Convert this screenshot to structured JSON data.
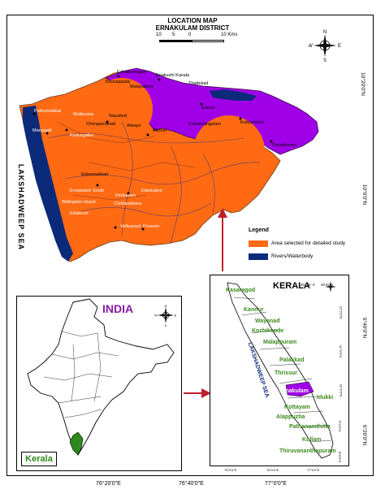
{
  "header": {
    "title": "LOCATION MAP",
    "district": "ERNAKULAM DISTRICT",
    "scale_ticks": [
      "10",
      "5",
      "0",
      "10 Kms"
    ]
  },
  "compass": {
    "n": "N",
    "s": "S",
    "e": "E",
    "w": "W"
  },
  "axes": {
    "lat_main": [
      "10°20'0\"N",
      "10°0'0\"N",
      "9°40'0\"N",
      "9°20'0\"N"
    ],
    "lon_main": [
      "76°20'0\"E",
      "76°40'0\"E",
      "77°0'0\"E"
    ],
    "lat_kerala": [
      "12°0'0\"N",
      "11°0'0\"N",
      "10°0'0\"N",
      "9°0'0\"N",
      "8°0'0\"N"
    ],
    "lon_kerala": [
      "75°0'0\"E",
      "76°0'0\"E",
      "77°0'0\"E"
    ]
  },
  "sea_label": "LAKSHADWEEP SEA",
  "places": [
    "Ezhattumugam",
    "Koovappady",
    "Malayattoor",
    "Enakuzhi Kavala",
    "Thattekad",
    "Eranur",
    "Kuttyanchal",
    "Thalakkunnu",
    "Mullavana",
    "Nayattod",
    "Puthurinakkal",
    "Chengamanad",
    "Alwaye",
    "Kodungallur",
    "Manappili",
    "Alimuri",
    "Kothamangalam",
    "Edavanakkad",
    "Ernakulam South",
    "Parlyaram",
    "Elankulam",
    "Willingdon Island",
    "Chottanikkara",
    "Edakochi",
    "Velliyanad",
    "Piravam"
  ],
  "legend": {
    "title": "Legend",
    "items": [
      {
        "label": "Area selected for detailed study",
        "color": "#ff6a13"
      },
      {
        "label": "Rivers/Waterbody",
        "color": "#0b2a7a"
      }
    ]
  },
  "india": {
    "title": "INDIA",
    "state": "Kerala"
  },
  "kerala": {
    "title": "KERALA",
    "scale": "40  20  0      40 Kms",
    "sea": "LAKSHADWEEP SEA",
    "districts": [
      "Kasaragod",
      "Kannur",
      "Wayanad",
      "Kozhikkode",
      "Malappuram",
      "Palakkad",
      "Thrissur",
      "Ernakulam",
      "Idukki",
      "Kottayam",
      "Alappuzha",
      "Pathanamthitta",
      "Kollam",
      "Thiruvananthapuram"
    ]
  },
  "colors": {
    "study_area": "#ff6a13",
    "purple": "#a000e8",
    "water": "#0b2a7a",
    "india_label": "#8a1ca8",
    "kerala_label": "#3c8a1c",
    "arrow": "#c0202a"
  }
}
